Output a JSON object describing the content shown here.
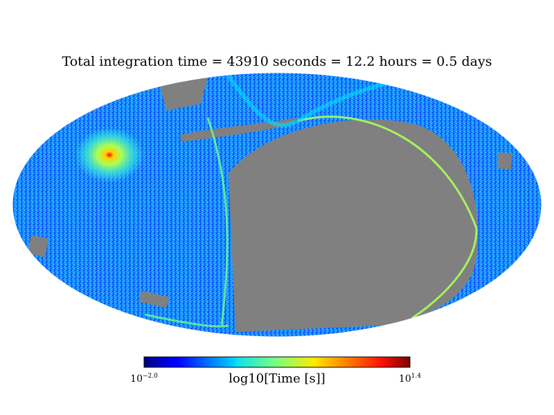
{
  "chart_data": {
    "type": "heatmap",
    "projection": "mollweide",
    "title": "Total integration time = 43910 seconds = 12.2 hours = 0.5 days",
    "colorbar": {
      "label": "log10[Time [s]]",
      "min_label_base": "10",
      "min_label_exp": "−2.0",
      "max_label_base": "10",
      "max_label_exp": "1.4",
      "vmin": -2.0,
      "vmax": 1.4,
      "colormap": "jet"
    },
    "unobserved_color": "#808080",
    "notes": "Sky coverage map; large unobserved region in right hemisphere; hotspot near upper-left reaches max."
  }
}
